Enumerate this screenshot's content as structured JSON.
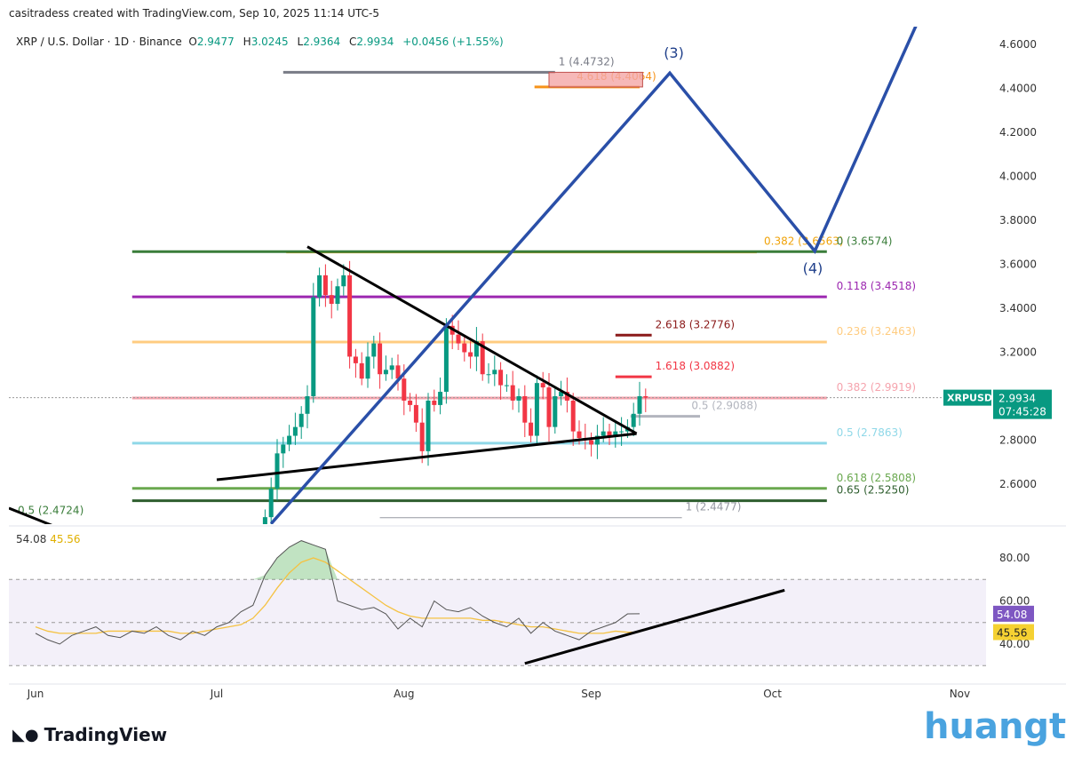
{
  "header": {
    "credit": "casitradess created with TradingView.com, Sep 10, 2025 11:14 UTC-5",
    "symbol": "XRP / U.S. Dollar · 1D · Binance",
    "o_label": "O",
    "o": "2.9477",
    "h_label": "H",
    "h": "3.0245",
    "l_label": "L",
    "l": "2.9364",
    "c_label": "C",
    "c": "2.9934",
    "change": "+0.0456 (+1.55%)"
  },
  "price_tag": {
    "symbol": "XRPUSD",
    "price": "2.9934",
    "countdown": "07:45:28"
  },
  "rsi_legend": {
    "rsi": "54.08",
    "ma": "45.56"
  },
  "rsi_tags": {
    "rsi": "54.08",
    "ma": "45.56"
  },
  "footer": {
    "logo": "TradingView",
    "watermark": "huangt.cn"
  },
  "colors": {
    "up": "#089981",
    "down": "#f23645",
    "wave": "#2a4fa8",
    "rsi": "#7e57c2",
    "rsi_ma": "#f5c242"
  },
  "chart_data": {
    "type": "line",
    "title": "XRP / U.S. Dollar · 1D · Binance",
    "x_axis": {
      "unit": "days since Jun 1, 2025",
      "ticks": [
        {
          "label": "Jun",
          "d": 0
        },
        {
          "label": "Jul",
          "d": 30
        },
        {
          "label": "Aug",
          "d": 61
        },
        {
          "label": "Sep",
          "d": 92
        },
        {
          "label": "Oct",
          "d": 122
        },
        {
          "label": "Nov",
          "d": 153
        }
      ]
    },
    "price_axis": {
      "ticks": [
        "4.6000",
        "4.4000",
        "4.2000",
        "4.0000",
        "3.8000",
        "3.6000",
        "3.4000",
        "3.2000",
        "2.8000",
        "2.6000"
      ],
      "range": [
        2.42,
        4.66
      ]
    },
    "rsi_axis": {
      "ticks": [
        "80.00",
        "60.00",
        "40.00"
      ],
      "band": [
        30,
        70
      ],
      "mid": 50
    },
    "candles": {
      "start_day": 38,
      "first_open": 2.4,
      "closes": [
        2.45,
        2.58,
        2.74,
        2.78,
        2.82,
        2.86,
        2.92,
        3.0,
        3.45,
        3.55,
        3.46,
        3.42,
        3.5,
        3.55,
        3.18,
        3.15,
        3.08,
        3.18,
        3.24,
        3.1,
        3.12,
        3.14,
        3.08,
        2.98,
        2.96,
        2.88,
        2.75,
        2.98,
        2.96,
        3.02,
        3.32,
        3.28,
        3.24,
        3.2,
        3.18,
        3.25,
        3.1,
        3.1,
        3.12,
        3.05,
        3.05,
        2.98,
        3.0,
        2.88,
        2.82,
        3.06,
        3.04,
        2.86,
        3.0,
        3.02,
        2.98,
        2.84,
        2.81,
        2.8,
        2.78,
        2.82,
        2.84,
        2.82,
        2.84,
        2.84,
        2.86,
        2.92,
        3.0,
        2.9934
      ]
    },
    "fib_levels": [
      {
        "label": "1 (4.4732)",
        "price": 4.4732,
        "from": 41,
        "to": 86,
        "color": "#787b86",
        "labelAt": 86
      },
      {
        "label": "4.618 (4.4064)",
        "price": 4.4064,
        "from": 82.6,
        "to": 100,
        "color": "#f7931a",
        "labelAt": 89
      },
      {
        "label": "0.382 (3.6563)",
        "price": 3.6563,
        "from": 41.5,
        "to": 119.4,
        "color": "#f0a30a",
        "labelAt": 120
      },
      {
        "label": "0 (3.6574)",
        "price": 3.6574,
        "from": 16,
        "to": 131,
        "color": "#3a7d3a",
        "labelAt": 132
      },
      {
        "label": "0.118 (3.4518)",
        "price": 3.4518,
        "from": 16,
        "to": 131,
        "color": "#9c27b0",
        "labelAt": 132
      },
      {
        "label": "2.618 (3.2776)",
        "price": 3.2776,
        "from": 96,
        "to": 102,
        "color": "#8b1a1a",
        "labelAt": 102
      },
      {
        "label": "0.236 (3.2463)",
        "price": 3.2463,
        "from": 16,
        "to": 131,
        "color": "#ffcc80",
        "labelAt": 132
      },
      {
        "label": "1.618 (3.0882)",
        "price": 3.0882,
        "from": 96,
        "to": 102,
        "color": "#f23645",
        "labelAt": 102
      },
      {
        "label": "0.382 (2.9919)",
        "price": 2.9919,
        "from": 16,
        "to": 131,
        "color": "#f5a3ad",
        "labelAt": 132
      },
      {
        "label": "0.5 (2.9088)",
        "price": 2.9088,
        "from": 98.5,
        "to": 110,
        "color": "#b2b5be",
        "labelAt": 108
      },
      {
        "label": "0.5 (2.7863)",
        "price": 2.7863,
        "from": 16,
        "to": 131,
        "color": "#8fd8e8",
        "labelAt": 132
      },
      {
        "label": "0.618 (2.5808)",
        "price": 2.5808,
        "from": 16,
        "to": 131,
        "color": "#6aa84f",
        "labelAt": 132
      },
      {
        "label": "0.65 (2.5250)",
        "price": 2.525,
        "from": 16,
        "to": 131,
        "color": "#2e5e2e",
        "labelAt": 132
      },
      {
        "label": "1 (2.4477)",
        "price": 2.4477,
        "from": 57,
        "to": 107,
        "color": "#9598a1",
        "labelAt": 107
      },
      {
        "label": "0.5 (2.4724)",
        "price": 2.4724,
        "from": -3,
        "to": -3,
        "color": "#3a7d3a",
        "labelAt": -3
      }
    ],
    "target_box": {
      "top": 4.4732,
      "bottom": 4.4064,
      "from": 85,
      "to": 100.5,
      "color": "#f4a6a6"
    },
    "wave": {
      "points": [
        [
          39,
          2.42
        ],
        [
          105,
          4.47
        ],
        [
          129,
          3.66
        ],
        [
          146,
          4.7
        ]
      ],
      "labels": [
        {
          "text": "(3)",
          "d": 104,
          "price": 4.54
        },
        {
          "text": "(4)",
          "d": 127,
          "price": 3.56
        }
      ]
    },
    "triangle": {
      "upper": [
        [
          45,
          3.68
        ],
        [
          99.5,
          2.83
        ]
      ],
      "lower": [
        [
          30,
          2.62
        ],
        [
          99.5,
          2.83
        ]
      ]
    },
    "rsi": {
      "step_days": 2,
      "values": [
        45,
        42,
        40,
        44,
        46,
        48,
        44,
        43,
        46,
        45,
        48,
        44,
        42,
        46,
        44,
        48,
        50,
        55,
        58,
        72,
        80,
        85,
        88,
        86,
        84,
        60,
        58,
        56,
        57,
        54,
        47,
        52,
        48,
        60,
        56,
        55,
        57,
        53,
        50,
        48,
        52,
        45,
        50,
        46,
        44,
        42,
        46,
        48,
        50,
        54,
        54.08
      ]
    },
    "rsi_ma": {
      "values": [
        48,
        46,
        45,
        45,
        45,
        45,
        46,
        46,
        46,
        46,
        46,
        46,
        45,
        45,
        46,
        47,
        48,
        49,
        52,
        58,
        66,
        73,
        78,
        80,
        78,
        74,
        70,
        66,
        62,
        58,
        55,
        53,
        52,
        52,
        52,
        52,
        52,
        51,
        51,
        50,
        49,
        48,
        48,
        47,
        46,
        45,
        45,
        45,
        46,
        45.5,
        45.56
      ]
    },
    "rsi_trendline": [
      [
        81,
        31
      ],
      [
        124,
        65
      ]
    ]
  }
}
